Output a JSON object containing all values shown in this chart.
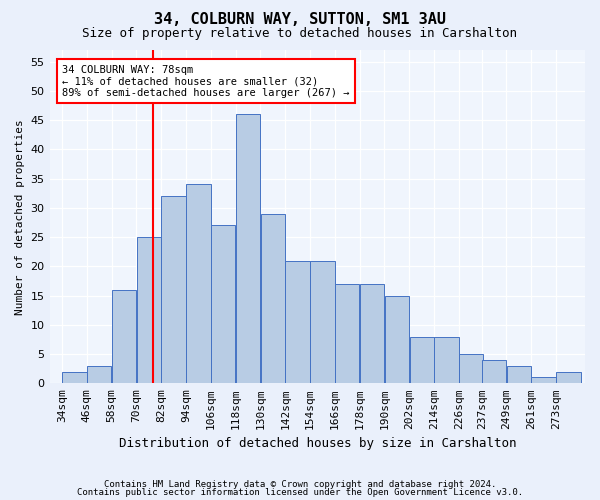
{
  "title1": "34, COLBURN WAY, SUTTON, SM1 3AU",
  "title2": "Size of property relative to detached houses in Carshalton",
  "xlabel": "Distribution of detached houses by size in Carshalton",
  "ylabel": "Number of detached properties",
  "categories": [
    "34sqm",
    "46sqm",
    "58sqm",
    "70sqm",
    "82sqm",
    "94sqm",
    "106sqm",
    "118sqm",
    "130sqm",
    "142sqm",
    "154sqm",
    "166sqm",
    "178sqm",
    "190sqm",
    "202sqm",
    "214sqm",
    "226sqm",
    "237sqm",
    "249sqm",
    "261sqm",
    "273sqm"
  ],
  "values": [
    2,
    3,
    16,
    25,
    32,
    34,
    27,
    46,
    29,
    21,
    21,
    17,
    17,
    15,
    8,
    8,
    5,
    4,
    3,
    1,
    2
  ],
  "bin_starts": [
    34,
    46,
    58,
    70,
    82,
    94,
    106,
    118,
    130,
    142,
    154,
    166,
    178,
    190,
    202,
    214,
    226,
    237,
    249,
    261,
    273
  ],
  "bin_width": 12,
  "bar_color": "#b8cce4",
  "bar_edge_color": "#4472c4",
  "vline_x": 78,
  "annotation_text": "34 COLBURN WAY: 78sqm\n← 11% of detached houses are smaller (32)\n89% of semi-detached houses are larger (267) →",
  "annotation_box_color": "white",
  "annotation_box_edge": "red",
  "ylim": [
    0,
    57
  ],
  "yticks": [
    0,
    5,
    10,
    15,
    20,
    25,
    30,
    35,
    40,
    45,
    50,
    55
  ],
  "footer1": "Contains HM Land Registry data © Crown copyright and database right 2024.",
  "footer2": "Contains public sector information licensed under the Open Government Licence v3.0.",
  "bg_color": "#eaf0fb",
  "plot_bg_color": "#f0f5fd"
}
